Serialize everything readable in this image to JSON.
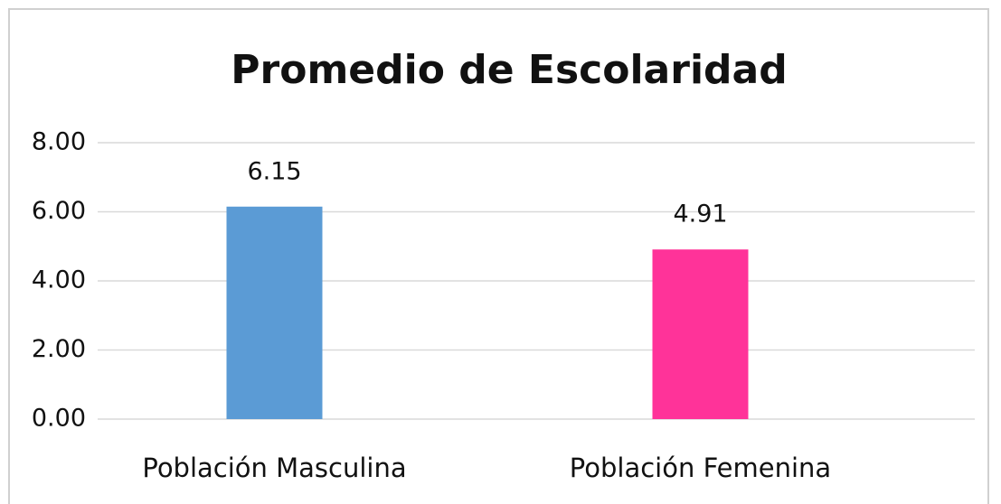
{
  "chart_data": {
    "type": "bar",
    "title": "Promedio de Escolaridad",
    "categories": [
      "Población Masculina",
      "Población Femenina"
    ],
    "values": [
      6.15,
      4.91
    ],
    "colors": [
      "#5b9bd5",
      "#ff3399"
    ],
    "ylim": [
      0,
      8
    ],
    "yticks": [
      {
        "value": 0,
        "label": "0.00"
      },
      {
        "value": 2,
        "label": "2.00"
      },
      {
        "value": 4,
        "label": "4.00"
      },
      {
        "value": 6,
        "label": "6.00"
      },
      {
        "value": 8,
        "label": "8.00"
      }
    ],
    "grid": true
  }
}
